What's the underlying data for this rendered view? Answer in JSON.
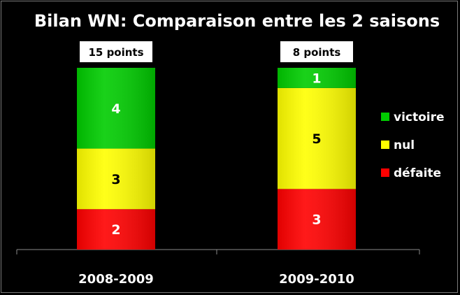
{
  "chart_data": {
    "type": "bar",
    "stacked": true,
    "title": "Bilan WN: Comparaison entre les 2 saisons",
    "categories": [
      "2008-2009",
      "2009-2010"
    ],
    "totals": [
      "15 points",
      "8 points"
    ],
    "series": [
      {
        "name": "défaite",
        "values": [
          2,
          3
        ],
        "color": "#ff0000",
        "label_color": "#ffffff"
      },
      {
        "name": "nul",
        "values": [
          3,
          5
        ],
        "color": "#ffff00",
        "label_color": "#000000"
      },
      {
        "name": "victoire",
        "values": [
          4,
          1
        ],
        "color": "#00cc00",
        "label_color": "#ffffff"
      }
    ],
    "legend_order": [
      "victoire",
      "nul",
      "défaite"
    ],
    "legend_position": "right",
    "ylim": [
      0,
      9
    ],
    "grid": false,
    "background": "#000000"
  }
}
